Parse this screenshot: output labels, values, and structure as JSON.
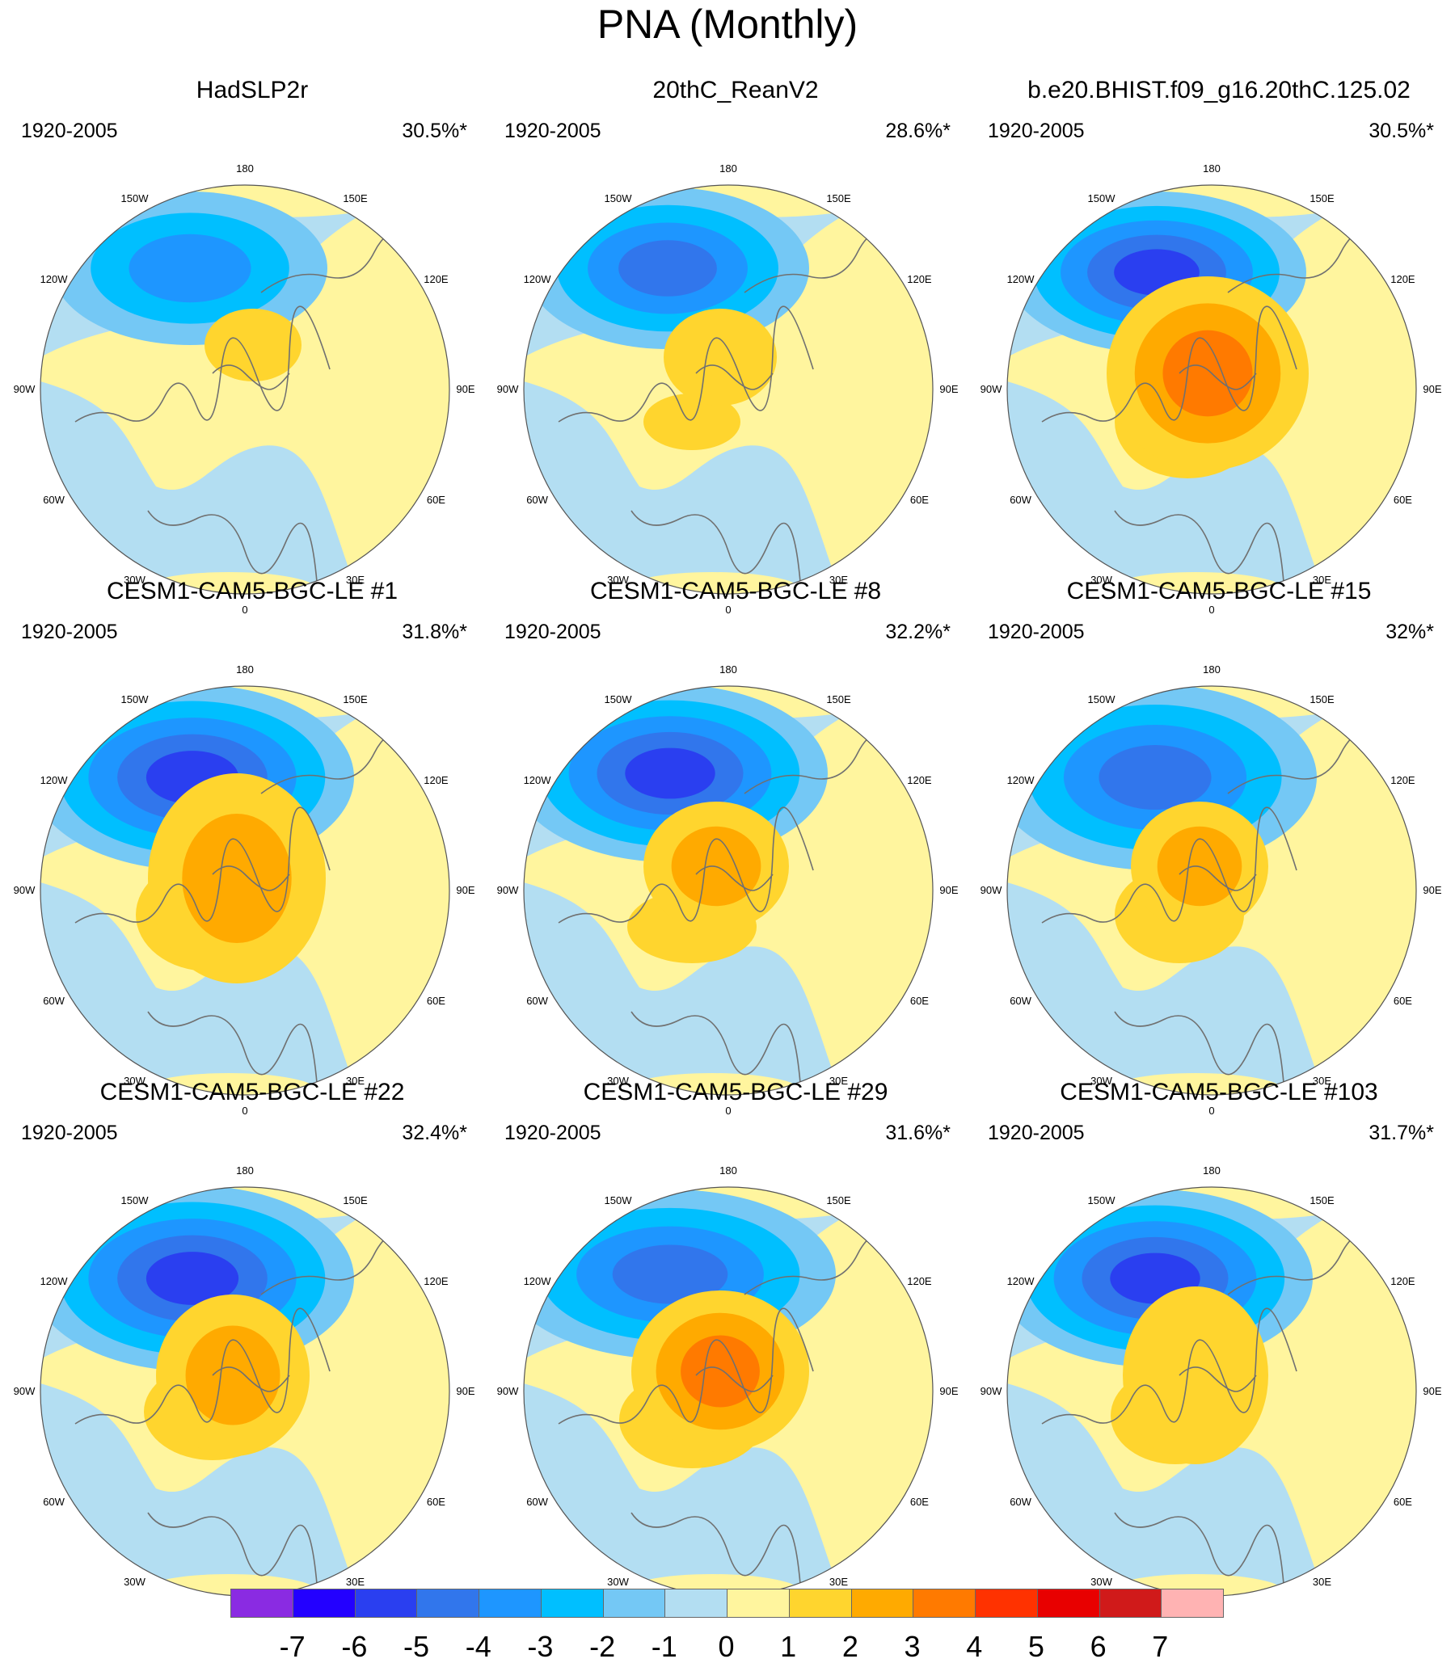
{
  "title": "PNA (Monthly)",
  "lon_labels": [
    "180",
    "150E",
    "120E",
    "90E",
    "60E",
    "30E",
    "0",
    "30W",
    "60W",
    "90W",
    "120W",
    "150W"
  ],
  "panels": [
    {
      "title": "HadSLP2r",
      "period": "1920-2005",
      "pct": "30.5%*"
    },
    {
      "title": "20thC_ReanV2",
      "period": "1920-2005",
      "pct": "28.6%*"
    },
    {
      "title": "b.e20.BHIST.f09_g16.20thC.125.02",
      "period": "1920-2005",
      "pct": "30.5%*"
    },
    {
      "title": "CESM1-CAM5-BGC-LE #1",
      "period": "1920-2005",
      "pct": "31.8%*"
    },
    {
      "title": "CESM1-CAM5-BGC-LE #8",
      "period": "1920-2005",
      "pct": "32.2%*"
    },
    {
      "title": "CESM1-CAM5-BGC-LE #15",
      "period": "1920-2005",
      "pct": "32%*"
    },
    {
      "title": "CESM1-CAM5-BGC-LE #22",
      "period": "1920-2005",
      "pct": "32.4%*"
    },
    {
      "title": "CESM1-CAM5-BGC-LE #29",
      "period": "1920-2005",
      "pct": "31.6%*"
    },
    {
      "title": "CESM1-CAM5-BGC-LE #103",
      "period": "1920-2005",
      "pct": "31.7%*"
    }
  ],
  "colorbar": {
    "colors": [
      "#8a2be2",
      "#2300ff",
      "#2a3ff0",
      "#3176ec",
      "#1e96ff",
      "#00bfff",
      "#74c8f5",
      "#b3def2",
      "#fff59e",
      "#ffd52e",
      "#ffaa00",
      "#ff7a00",
      "#ff3200",
      "#e80000",
      "#d01a1a",
      "#ffb3b3"
    ],
    "ticks": [
      "-7",
      "-6",
      "-5",
      "-4",
      "-3",
      "-2",
      "-1",
      "0",
      "1",
      "2",
      "3",
      "4",
      "5",
      "6",
      "7"
    ]
  }
}
